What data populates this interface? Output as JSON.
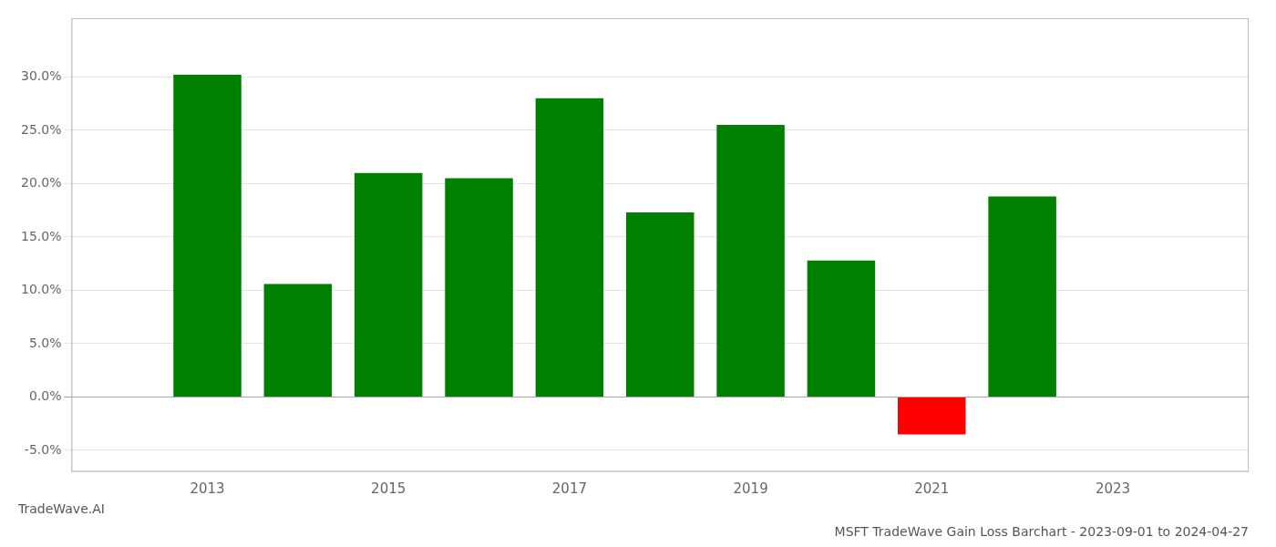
{
  "chart_data": {
    "type": "bar",
    "title": "MSFT TradeWave Gain Loss Barchart - 2023-09-01 to 2024-04-27",
    "annotations": [
      "TradeWave.AI"
    ],
    "x": [
      2013,
      2014,
      2015,
      2016,
      2017,
      2018,
      2019,
      2020,
      2021,
      2022
    ],
    "values": [
      0.302,
      0.106,
      0.21,
      0.205,
      0.28,
      0.173,
      0.255,
      0.128,
      -0.035,
      0.188
    ],
    "colors": [
      "#008000",
      "#008000",
      "#008000",
      "#008000",
      "#008000",
      "#008000",
      "#008000",
      "#008000",
      "#ff0000",
      "#008000"
    ],
    "xlim": [
      2011.5,
      2024.5
    ],
    "xticks": [
      2013,
      2015,
      2017,
      2019,
      2021,
      2023
    ],
    "ylim": [
      -0.07,
      0.355
    ],
    "yticks": [
      {
        "value": -0.05,
        "label": "-5.0%"
      },
      {
        "value": 0.0,
        "label": "0.0%"
      },
      {
        "value": 0.05,
        "label": "5.0%"
      },
      {
        "value": 0.1,
        "label": "10.0%"
      },
      {
        "value": 0.15,
        "label": "15.0%"
      },
      {
        "value": 0.2,
        "label": "20.0%"
      },
      {
        "value": 0.25,
        "label": "25.0%"
      },
      {
        "value": 0.3,
        "label": "30.0%"
      }
    ],
    "grid": true
  }
}
